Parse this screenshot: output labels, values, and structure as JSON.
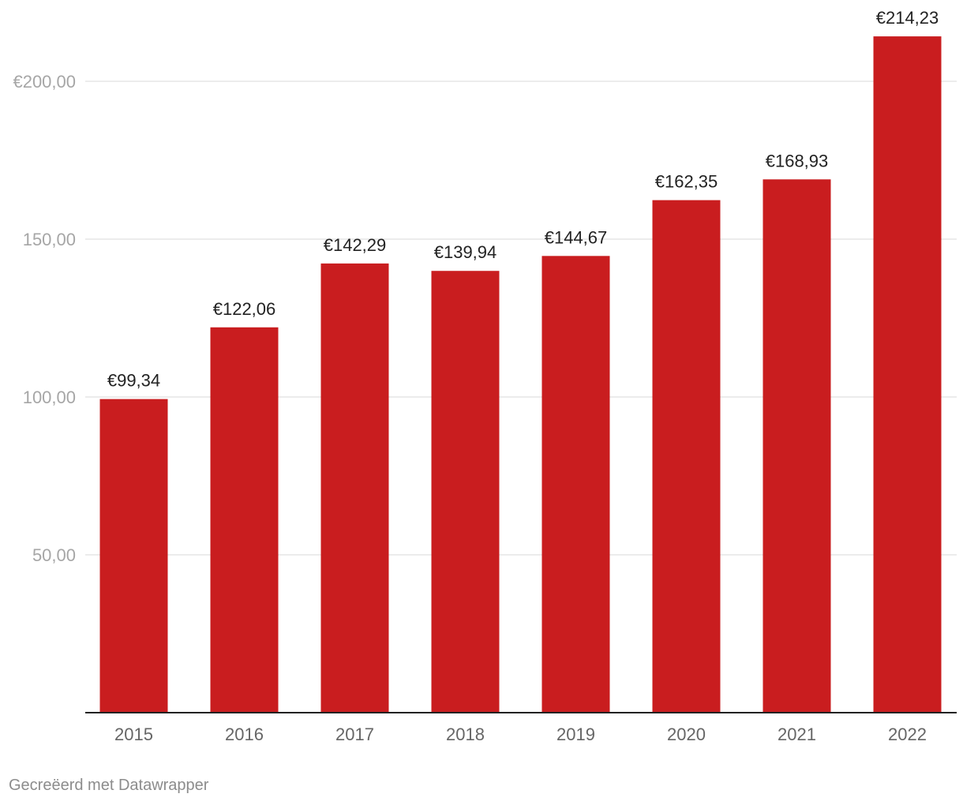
{
  "chart_data": {
    "type": "bar",
    "categories": [
      "2015",
      "2016",
      "2017",
      "2018",
      "2019",
      "2020",
      "2021",
      "2022"
    ],
    "values": [
      99.34,
      122.06,
      142.29,
      139.94,
      144.67,
      162.35,
      168.93,
      214.23
    ],
    "data_labels": [
      "€99,34",
      "€122,06",
      "€142,29",
      "€139,94",
      "€144,67",
      "€162,35",
      "€168,93",
      "€214,23"
    ],
    "yticks": [
      50,
      100,
      150,
      200
    ],
    "ytick_labels": [
      "50,00",
      "100,00",
      "150,00",
      "€200,00"
    ],
    "ylim": [
      0,
      225
    ],
    "grid": true,
    "colors": {
      "bar": "#c91d1f",
      "grid": "#e5e5e5",
      "axis": "#222222"
    }
  },
  "footer": {
    "credit": "Gecreëerd met Datawrapper"
  }
}
